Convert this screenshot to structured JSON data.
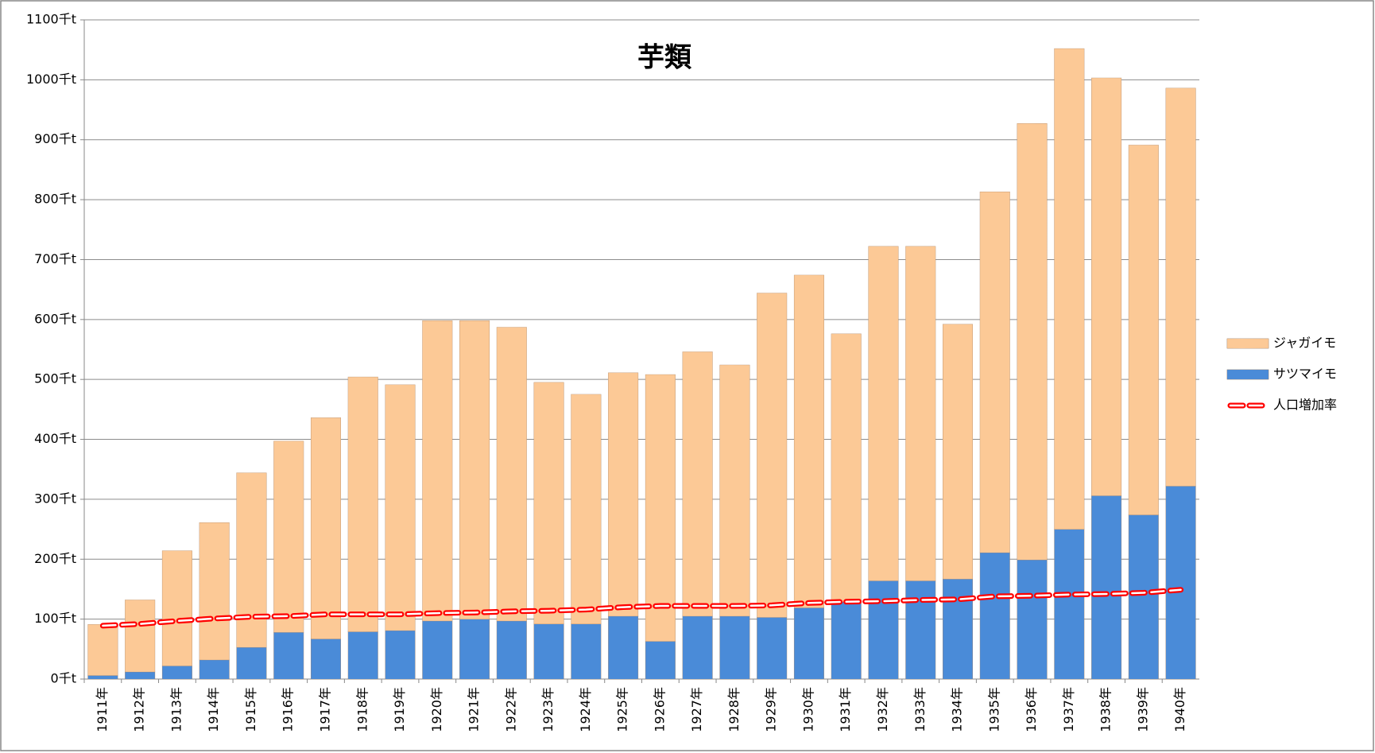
{
  "chart_data": {
    "type": "bar",
    "title": "芋類",
    "categories": [
      "1911年",
      "1912年",
      "1913年",
      "1914年",
      "1915年",
      "1916年",
      "1917年",
      "1918年",
      "1919年",
      "1920年",
      "1921年",
      "1922年",
      "1923年",
      "1924年",
      "1925年",
      "1926年",
      "1927年",
      "1928年",
      "1929年",
      "1930年",
      "1931年",
      "1932年",
      "1933年",
      "1934年",
      "1935年",
      "1936年",
      "1937年",
      "1938年",
      "1939年",
      "1940年"
    ],
    "series": [
      {
        "name": "サツマイモ",
        "type": "bar",
        "color": "#4a8bd8",
        "values": [
          6,
          12,
          22,
          32,
          53,
          78,
          67,
          79,
          81,
          97,
          100,
          97,
          92,
          92,
          105,
          63,
          105,
          105,
          103,
          119,
          129,
          164,
          164,
          167,
          211,
          199,
          250,
          306,
          274,
          322
        ]
      },
      {
        "name": "ジャガイモ",
        "type": "bar",
        "color": "#fcc996",
        "values": [
          85,
          120,
          192,
          229,
          291,
          319,
          369,
          425,
          410,
          501,
          498,
          490,
          403,
          383,
          406,
          445,
          441,
          419,
          541,
          555,
          447,
          558,
          558,
          425,
          602,
          728,
          802,
          697,
          617,
          664
        ]
      },
      {
        "name": "人口増加率",
        "type": "line",
        "color": "#ff0000",
        "values": [
          89,
          92,
          97,
          101,
          104,
          105,
          108,
          108,
          108,
          110,
          111,
          113,
          114,
          116,
          120,
          122,
          122,
          122,
          123,
          127,
          129,
          130,
          132,
          133,
          138,
          139,
          141,
          142,
          144,
          149
        ]
      }
    ],
    "ylim": [
      0,
      1100
    ],
    "yticks": [
      {
        "value": 0,
        "label": "0千t"
      },
      {
        "value": 100,
        "label": "100千t"
      },
      {
        "value": 200,
        "label": "200千t"
      },
      {
        "value": 300,
        "label": "300千t"
      },
      {
        "value": 400,
        "label": "400千t"
      },
      {
        "value": 500,
        "label": "500千t"
      },
      {
        "value": 600,
        "label": "600千t"
      },
      {
        "value": 700,
        "label": "700千t"
      },
      {
        "value": 800,
        "label": "800千t"
      },
      {
        "value": 900,
        "label": "900千t"
      },
      {
        "value": 1000,
        "label": "1000千t"
      },
      {
        "value": 1100,
        "label": "1100千t"
      }
    ],
    "grid": true,
    "legend": "right"
  }
}
